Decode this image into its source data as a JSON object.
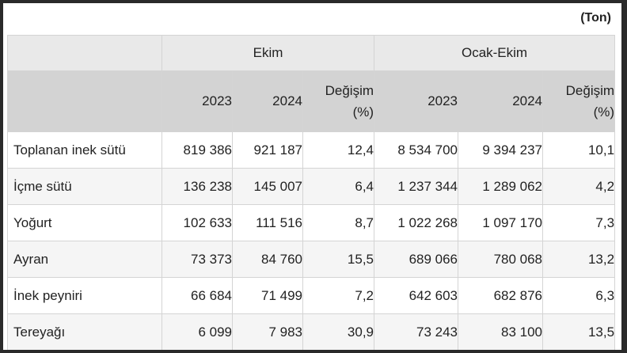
{
  "unit": "(Ton)",
  "groups": [
    "Ekim",
    "Ocak-Ekim"
  ],
  "subheaders": {
    "year_a": "2023",
    "year_b": "2024",
    "change_line1": "Değişim",
    "change_line2": "(%)"
  },
  "rows": [
    {
      "label": "Toplanan inek sütü",
      "ekim_2023": "819 386",
      "ekim_2024": "921 187",
      "ekim_change": "12,4",
      "oe_2023": "8 534 700",
      "oe_2024": "9 394 237",
      "oe_change": "10,1"
    },
    {
      "label": "İçme sütü",
      "ekim_2023": "136 238",
      "ekim_2024": "145 007",
      "ekim_change": "6,4",
      "oe_2023": "1 237 344",
      "oe_2024": "1 289 062",
      "oe_change": "4,2"
    },
    {
      "label": "Yoğurt",
      "ekim_2023": "102 633",
      "ekim_2024": "111 516",
      "ekim_change": "8,7",
      "oe_2023": "1 022 268",
      "oe_2024": "1 097 170",
      "oe_change": "7,3"
    },
    {
      "label": "Ayran",
      "ekim_2023": "73 373",
      "ekim_2024": "84 760",
      "ekim_change": "15,5",
      "oe_2023": "689 066",
      "oe_2024": "780 068",
      "oe_change": "13,2"
    },
    {
      "label": "İnek peyniri",
      "ekim_2023": "66 684",
      "ekim_2024": "71 499",
      "ekim_change": "7,2",
      "oe_2023": "642 603",
      "oe_2024": "682 876",
      "oe_change": "6,3"
    },
    {
      "label": "Tereyağı",
      "ekim_2023": "6 099",
      "ekim_2024": "7 983",
      "ekim_change": "30,9",
      "oe_2023": "73 243",
      "oe_2024": "83 100",
      "oe_change": "13,5"
    }
  ]
}
